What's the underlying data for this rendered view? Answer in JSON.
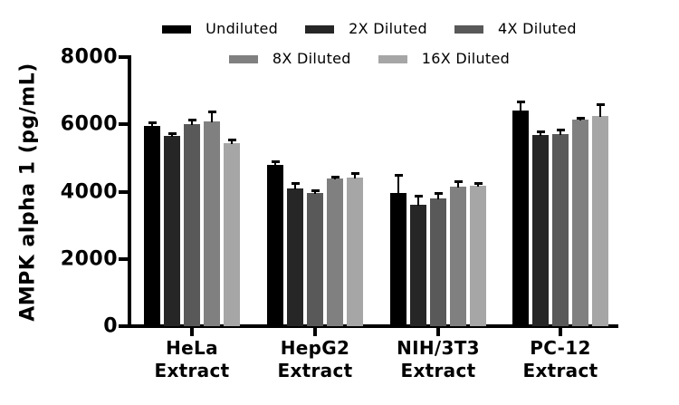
{
  "chart_data": {
    "type": "bar",
    "title": "",
    "ylabel": "AMPK alpha 1 (pg/mL)",
    "xlabel": "",
    "ylim": [
      0,
      8000
    ],
    "yticks": [
      0,
      2000,
      4000,
      6000,
      8000
    ],
    "grid": false,
    "legend_position": "top",
    "error_bars": "upper SD, black",
    "categories": [
      "HeLa Extract",
      "HepG2 Extract",
      "NIH/3T3 Extract",
      "PC-12 Extract"
    ],
    "series": [
      {
        "name": "Undiluted",
        "color": "#000000",
        "values": [
          5950,
          4800,
          3950,
          6400
        ],
        "errors": [
          100,
          110,
          550,
          270
        ]
      },
      {
        "name": "2X Diluted",
        "color": "#262626",
        "values": [
          5650,
          4100,
          3620,
          5680
        ],
        "errors": [
          80,
          150,
          270,
          110
        ]
      },
      {
        "name": "4X Diluted",
        "color": "#595959",
        "values": [
          6000,
          3970,
          3800,
          5700
        ],
        "errors": [
          140,
          70,
          150,
          140
        ]
      },
      {
        "name": "8X Diluted",
        "color": "#808080",
        "values": [
          6100,
          4380,
          4150,
          6130
        ],
        "errors": [
          280,
          60,
          160,
          70
        ]
      },
      {
        "name": "16X Diluted",
        "color": "#a6a6a6",
        "values": [
          5450,
          4420,
          4180,
          6260
        ],
        "errors": [
          90,
          140,
          80,
          340
        ]
      }
    ]
  }
}
